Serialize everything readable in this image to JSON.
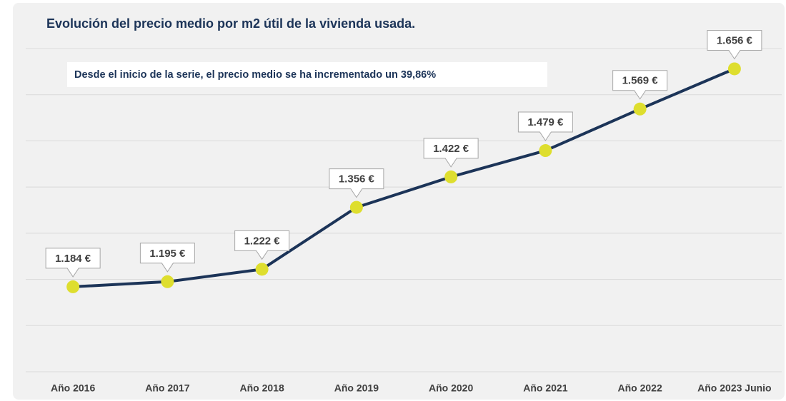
{
  "chart_data": {
    "type": "line",
    "title": "Evolución del precio medio por m2 útil de la vivienda usada.",
    "annotation": "Desde el inicio de la serie, el precio medio se ha incrementado un 39,86%",
    "categories": [
      "Año 2016",
      "Año 2017",
      "Año 2018",
      "Año 2019",
      "Año 2020",
      "Año 2021",
      "Año 2022",
      "Año 2023 Junio"
    ],
    "series": [
      {
        "color": "#1c3458",
        "values": [
          1184,
          1195,
          1222,
          1356,
          1422,
          1479,
          1569,
          1656
        ],
        "value_labels": [
          "1.184 €",
          "1.195 €",
          "1.222 €",
          "1.356 €",
          "1.422 €",
          "1.479 €",
          "1.569 €",
          "1.656 €"
        ]
      }
    ],
    "marker_color": "#dede2e",
    "ylim": [
      1000,
      1700
    ],
    "yticks": [
      1000,
      1100,
      1200,
      1300,
      1400,
      1500,
      1600,
      1700
    ],
    "grid": true
  }
}
